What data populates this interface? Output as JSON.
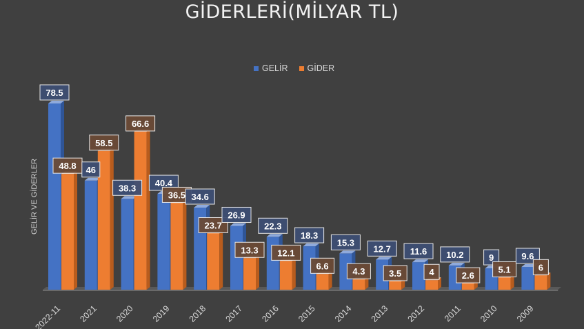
{
  "chart_data": {
    "type": "bar",
    "title": "GİDERLERİ(MİLYAR TL)",
    "ylabel": "GELİR VE GİDERLER",
    "xlabel": "",
    "categories": [
      "2022-11",
      "2021",
      "2020",
      "2019",
      "2018",
      "2017",
      "2016",
      "2015",
      "2014",
      "2013",
      "2012",
      "2011",
      "2010",
      "2009"
    ],
    "series": [
      {
        "name": "GELİR",
        "color": "#4472c4",
        "values": [
          78.5,
          46,
          38.3,
          40.4,
          34.6,
          26.9,
          22.3,
          18.3,
          15.3,
          12.7,
          11.6,
          10.2,
          9,
          9.6
        ]
      },
      {
        "name": "GİDER",
        "color": "#ed7d31",
        "values": [
          48.8,
          58.5,
          66.6,
          36.5,
          23.7,
          13.3,
          12.1,
          6.6,
          4.3,
          3.5,
          4,
          2.6,
          5.1,
          6
        ]
      }
    ],
    "ylim": [
      0,
      80
    ],
    "grid": false,
    "legend_position": "top",
    "style": "3d-clustered-column"
  }
}
